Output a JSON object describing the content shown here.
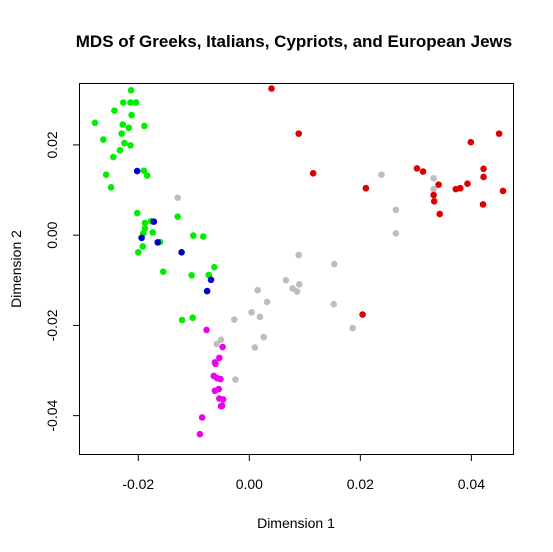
{
  "chart_data": {
    "type": "scatter",
    "title": "MDS of Greeks, Italians, Cypriots, and European Jews",
    "xlabel": "Dimension 1",
    "ylabel": "Dimension 2",
    "xlim": [
      -0.0305,
      0.0475
    ],
    "ylim": [
      -0.0485,
      0.0335
    ],
    "xticks": [
      -0.02,
      0.0,
      0.02,
      0.04
    ],
    "xtick_labels": [
      "-0.02",
      "0.00",
      "0.02",
      "0.04"
    ],
    "yticks": [
      -0.04,
      -0.02,
      0.0,
      0.02
    ],
    "ytick_labels": [
      "-0.04",
      "-0.02",
      "0.00",
      "0.02"
    ],
    "grid": false,
    "series": [
      {
        "color": "#00ee00",
        "points": [
          [
            -0.0213,
            0.0321
          ],
          [
            -0.0227,
            0.0294
          ],
          [
            -0.0214,
            0.0294
          ],
          [
            -0.0204,
            0.0294
          ],
          [
            -0.0243,
            0.0276
          ],
          [
            -0.0212,
            0.0266
          ],
          [
            -0.0278,
            0.0249
          ],
          [
            -0.0228,
            0.0245
          ],
          [
            -0.0189,
            0.0242
          ],
          [
            -0.0217,
            0.0238
          ],
          [
            -0.023,
            0.0225
          ],
          [
            -0.0263,
            0.0212
          ],
          [
            -0.0225,
            0.0204
          ],
          [
            -0.0214,
            0.0199
          ],
          [
            -0.0233,
            0.0188
          ],
          [
            -0.0245,
            0.0173
          ],
          [
            -0.019,
            0.0143
          ],
          [
            -0.0258,
            0.0134
          ],
          [
            -0.0184,
            0.0132
          ],
          [
            -0.0249,
            0.0106
          ],
          [
            -0.0202,
            0.0049
          ],
          [
            -0.0129,
            0.0041
          ],
          [
            -0.0177,
            0.0031
          ],
          [
            -0.0188,
            0.0027
          ],
          [
            -0.0188,
            0.0015
          ],
          [
            -0.0191,
            0.0004
          ],
          [
            -0.0174,
            0.0006
          ],
          [
            -0.0101,
            -0.0001
          ],
          [
            -0.0083,
            -0.0003
          ],
          [
            -0.0161,
            -0.0015
          ],
          [
            -0.0192,
            -0.0025
          ],
          [
            -0.02,
            -0.0038
          ],
          [
            -0.0063,
            -0.0071
          ],
          [
            -0.0155,
            -0.0081
          ],
          [
            -0.0104,
            -0.0089
          ],
          [
            -0.0073,
            -0.0088
          ],
          [
            -0.0102,
            -0.0183
          ],
          [
            -0.0121,
            -0.0188
          ]
        ]
      },
      {
        "color": "#0000cc",
        "points": [
          [
            -0.0202,
            0.0142
          ],
          [
            -0.0172,
            0.003
          ],
          [
            -0.0194,
            -0.0006
          ],
          [
            -0.0165,
            -0.0016
          ],
          [
            -0.0122,
            -0.0038
          ],
          [
            -0.0069,
            -0.0099
          ],
          [
            -0.0076,
            -0.0124
          ]
        ]
      },
      {
        "color": "#bebebe",
        "points": [
          [
            -0.0129,
            0.0083
          ],
          [
            0.0238,
            0.0134
          ],
          [
            0.0264,
            0.0056
          ],
          [
            0.0264,
            0.0004
          ],
          [
            0.0332,
            0.0126
          ],
          [
            0.0332,
            0.0102
          ],
          [
            0.0089,
            -0.0044
          ],
          [
            0.0153,
            -0.0064
          ],
          [
            0.0066,
            -0.01
          ],
          [
            0.0078,
            -0.0118
          ],
          [
            0.009,
            -0.0109
          ],
          [
            0.0086,
            -0.0125
          ],
          [
            0.0015,
            -0.0122
          ],
          [
            0.0032,
            -0.0148
          ],
          [
            0.0152,
            -0.0153
          ],
          [
            0.0004,
            -0.0171
          ],
          [
            0.0019,
            -0.0181
          ],
          [
            -0.0027,
            -0.0187
          ],
          [
            0.0186,
            -0.0206
          ],
          [
            0.0026,
            -0.0226
          ],
          [
            -0.0051,
            -0.0232
          ],
          [
            -0.0059,
            -0.0241
          ],
          [
            0.001,
            -0.0249
          ],
          [
            -0.0025,
            -0.032
          ]
        ]
      },
      {
        "color": "#dd0000",
        "points": [
          [
            0.004,
            0.0325
          ],
          [
            0.0089,
            0.0225
          ],
          [
            0.0115,
            0.0137
          ],
          [
            0.021,
            0.0104
          ],
          [
            0.0302,
            0.0148
          ],
          [
            0.0313,
            0.0141
          ],
          [
            0.045,
            0.0225
          ],
          [
            0.0399,
            0.0206
          ],
          [
            0.0422,
            0.0147
          ],
          [
            0.0422,
            0.0129
          ],
          [
            0.0341,
            0.0112
          ],
          [
            0.0393,
            0.0114
          ],
          [
            0.0372,
            0.0102
          ],
          [
            0.038,
            0.0104
          ],
          [
            0.0457,
            0.0098
          ],
          [
            0.0332,
            0.0089
          ],
          [
            0.0333,
            0.0075
          ],
          [
            0.0421,
            0.0068
          ],
          [
            0.0343,
            0.0047
          ],
          [
            0.0204,
            -0.0176
          ]
        ]
      },
      {
        "color": "#ee00ee",
        "points": [
          [
            -0.0077,
            -0.021
          ],
          [
            -0.0048,
            -0.0248
          ],
          [
            -0.0054,
            -0.0272
          ],
          [
            -0.0062,
            -0.0282
          ],
          [
            -0.0061,
            -0.0285
          ],
          [
            -0.0064,
            -0.0312
          ],
          [
            -0.0058,
            -0.0317
          ],
          [
            -0.0052,
            -0.0319
          ],
          [
            -0.0055,
            -0.0341
          ],
          [
            -0.0062,
            -0.0345
          ],
          [
            -0.0054,
            -0.0362
          ],
          [
            -0.0047,
            -0.0364
          ],
          [
            -0.0049,
            -0.0378
          ],
          [
            -0.0051,
            -0.0379
          ],
          [
            -0.0085,
            -0.0404
          ],
          [
            -0.0089,
            -0.0441
          ]
        ]
      }
    ]
  }
}
